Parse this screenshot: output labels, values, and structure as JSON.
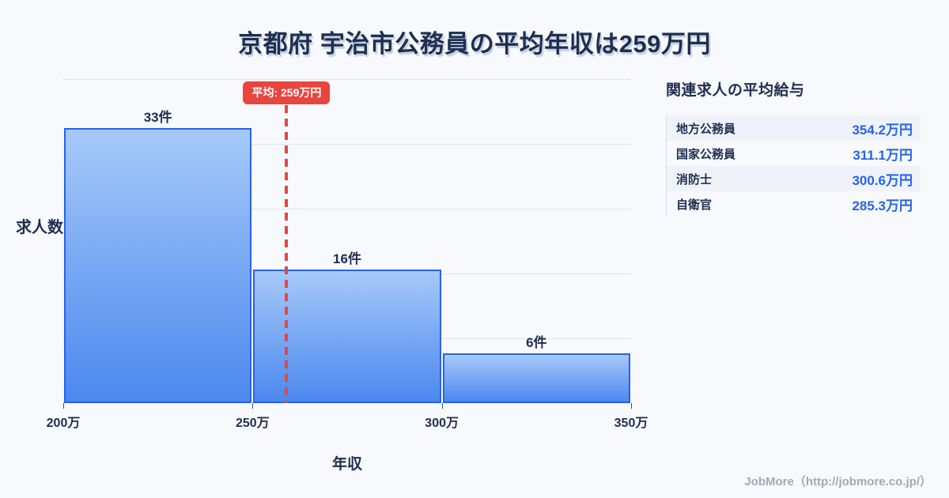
{
  "title": "京都府 宇治市公務員の平均年収は259万円",
  "chart_data": {
    "type": "bar",
    "title": "京都府 宇治市公務員の平均年収は259万円",
    "xlabel": "年収",
    "ylabel": "求人数",
    "x_range": [
      200,
      350
    ],
    "x_ticks": [
      "200万",
      "250万",
      "300万",
      "350万"
    ],
    "ylim": [
      0,
      38.9
    ],
    "grid": true,
    "legend": "none",
    "bins": [
      {
        "range_start": 200,
        "range_end": 250,
        "count": 33,
        "label": "33件"
      },
      {
        "range_start": 250,
        "range_end": 300,
        "count": 16,
        "label": "16件"
      },
      {
        "range_start": 300,
        "range_end": 350,
        "count": 6,
        "label": "6件"
      }
    ],
    "average": {
      "value": 259,
      "label": "平均: 259万円"
    }
  },
  "side_panel": {
    "heading": "関連求人の平均給与",
    "rows": [
      {
        "label": "地方公務員",
        "value": "354.2万円"
      },
      {
        "label": "国家公務員",
        "value": "311.1万円"
      },
      {
        "label": "消防士",
        "value": "300.6万円"
      },
      {
        "label": "自衛官",
        "value": "285.3万円"
      }
    ]
  },
  "footer": {
    "credit": "JobMore（http://jobmore.co.jp/）"
  },
  "colors": {
    "background": "#f7f9fc",
    "navy": "#1e2e4f",
    "bar_border": "#2563eb",
    "bar_gradient_top": "#a6c9f8",
    "bar_gradient_bottom": "#4c88ef",
    "average_red": "#e8453f",
    "grid_line": "#dbe3f0",
    "value_blue": "#2563eb",
    "row_alt_bg": "#eff3f9",
    "muted_gray": "#a2a8b4"
  }
}
